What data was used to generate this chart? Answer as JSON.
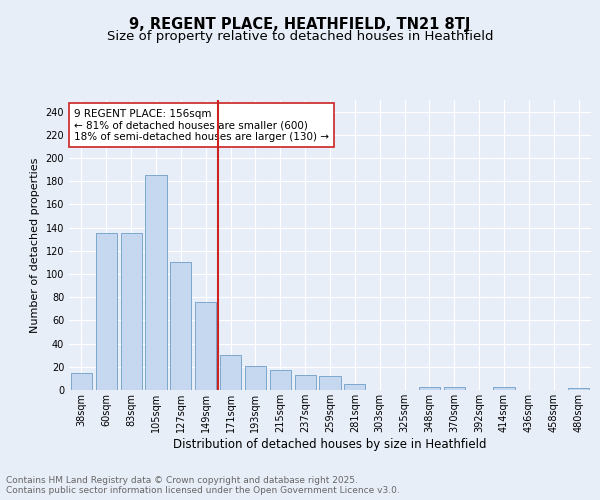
{
  "title": "9, REGENT PLACE, HEATHFIELD, TN21 8TJ",
  "subtitle": "Size of property relative to detached houses in Heathfield",
  "xlabel": "Distribution of detached houses by size in Heathfield",
  "ylabel": "Number of detached properties",
  "categories": [
    "38sqm",
    "60sqm",
    "83sqm",
    "105sqm",
    "127sqm",
    "149sqm",
    "171sqm",
    "193sqm",
    "215sqm",
    "237sqm",
    "259sqm",
    "281sqm",
    "303sqm",
    "325sqm",
    "348sqm",
    "370sqm",
    "392sqm",
    "414sqm",
    "436sqm",
    "458sqm",
    "480sqm"
  ],
  "values": [
    15,
    135,
    135,
    185,
    110,
    76,
    30,
    21,
    17,
    13,
    12,
    5,
    0,
    0,
    3,
    3,
    0,
    3,
    0,
    0,
    2
  ],
  "bar_color": "#c5d8f0",
  "bar_edge_color": "#5a8fc0",
  "vline_x": 5.5,
  "vline_color": "#cc2222",
  "annotation_text": "9 REGENT PLACE: 156sqm\n← 81% of detached houses are smaller (600)\n18% of semi-detached houses are larger (130) →",
  "annotation_box_color": "#ffffff",
  "annotation_box_edge": "#cc2222",
  "ylim": [
    0,
    250
  ],
  "yticks": [
    0,
    20,
    40,
    60,
    80,
    100,
    120,
    140,
    160,
    180,
    200,
    220,
    240
  ],
  "bg_color": "#e8eef8",
  "footer_text": "Contains HM Land Registry data © Crown copyright and database right 2025.\nContains public sector information licensed under the Open Government Licence v3.0.",
  "title_fontsize": 10.5,
  "subtitle_fontsize": 9.5,
  "xlabel_fontsize": 8.5,
  "ylabel_fontsize": 8,
  "tick_fontsize": 7,
  "footer_fontsize": 6.5,
  "annotation_fontsize": 7.5
}
